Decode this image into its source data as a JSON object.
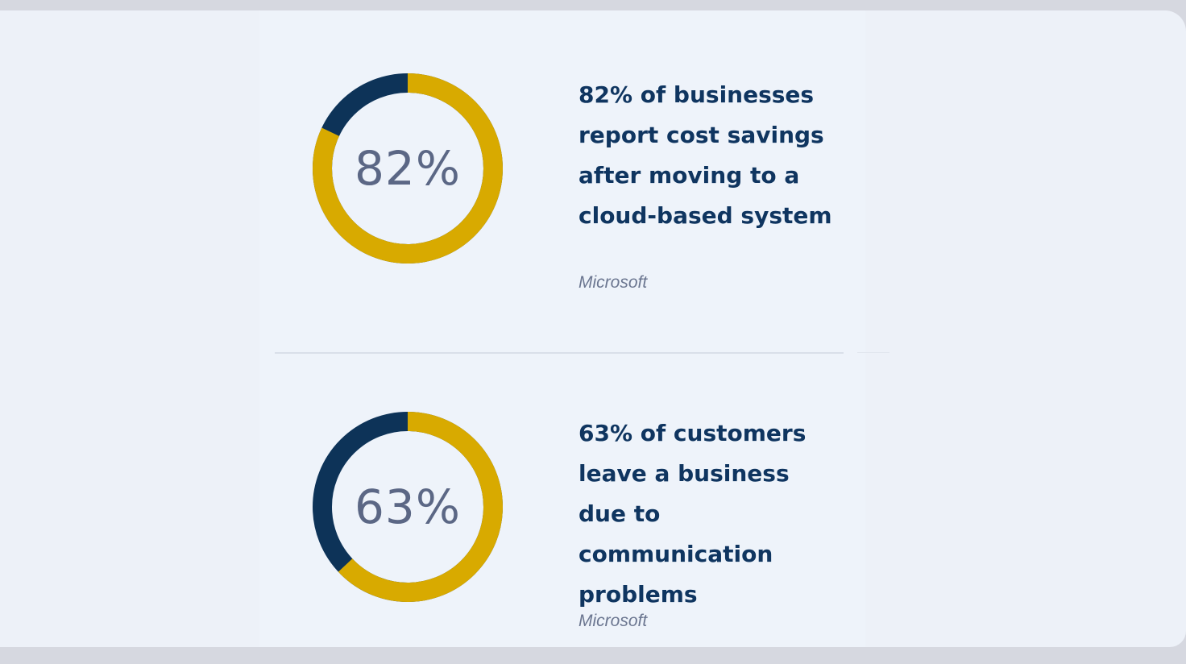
{
  "stats": [
    {
      "percent_label": "82%",
      "percent_value": 0.82,
      "text": "82% of businesses report cost savings after moving to a cloud-based system",
      "source": "Microsoft"
    },
    {
      "percent_label": "63%",
      "percent_value": 0.63,
      "text": "63% of customers leave a business due to communication problems",
      "source": "Microsoft"
    }
  ],
  "colors": {
    "highlight": "#d8aa00",
    "remainder": "#0d3358",
    "percent_text": "#5b6785",
    "statement_text": "#0f3560",
    "source_text": "#6b7690"
  }
}
